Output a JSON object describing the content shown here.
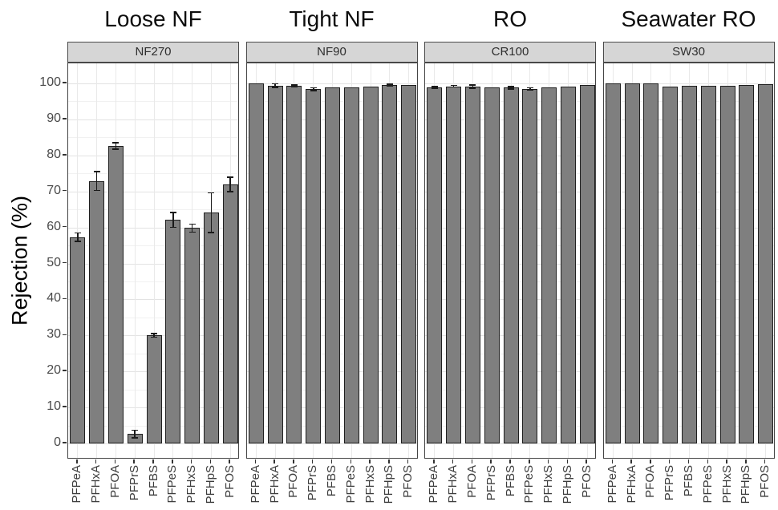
{
  "chart_data": {
    "type": "bar",
    "title": "",
    "ylabel": "Rejection (%)",
    "xlabel": "",
    "ylim": [
      0,
      100
    ],
    "yticks": [
      0,
      10,
      20,
      30,
      40,
      50,
      60,
      70,
      80,
      90,
      100
    ],
    "grid": "major and minor horizontal gridlines on, vertical gridlines at category centers",
    "legend": "none",
    "error_bars": true,
    "categories": [
      "PFPeA",
      "PFHxA",
      "PFOA",
      "PFPrS",
      "PFBS",
      "PFPeS",
      "PFHxS",
      "PFHpS",
      "PFOS"
    ],
    "panels": [
      {
        "title": "Loose NF",
        "membrane": "NF270",
        "values": [
          57.3,
          72.9,
          82.6,
          2.6,
          30.0,
          62.1,
          59.8,
          64.1,
          71.9
        ],
        "errors": [
          1.2,
          2.6,
          0.9,
          1.1,
          0.5,
          2.1,
          1.1,
          5.5,
          2.0
        ]
      },
      {
        "title": "Tight NF",
        "membrane": "NF90",
        "values": [
          100,
          99.4,
          99.3,
          98.4,
          98.8,
          98.8,
          99.2,
          99.5,
          99.6
        ],
        "errors": [
          0.1,
          0.5,
          0.3,
          0.4,
          0.1,
          0.1,
          0.1,
          0.3,
          0.1
        ]
      },
      {
        "title": "RO",
        "membrane": "CR100",
        "values": [
          98.9,
          99.2,
          99.1,
          98.8,
          98.8,
          98.5,
          98.9,
          99.2,
          99.6
        ],
        "errors": [
          0.2,
          0.2,
          0.4,
          0.1,
          0.3,
          0.3,
          0.1,
          0.1,
          0.1
        ]
      },
      {
        "title": "Seawater RO",
        "membrane": "SW30",
        "values": [
          100,
          100,
          100,
          99.0,
          99.3,
          99.3,
          99.3,
          99.5,
          99.7
        ],
        "errors": [
          0,
          0,
          0,
          0,
          0,
          0,
          0,
          0,
          0
        ]
      }
    ],
    "colors": {
      "bar_fill": "#7f7f7f",
      "bar_border": "#1f1f1f",
      "strip_bg": "#d6d6d6",
      "panel_border": "#454545",
      "grid_major": "#e3e3e3",
      "grid_minor": "#f1f1f1",
      "grid_vertical": "#e9e9e9",
      "tick_text": "#4a4a4a"
    }
  }
}
